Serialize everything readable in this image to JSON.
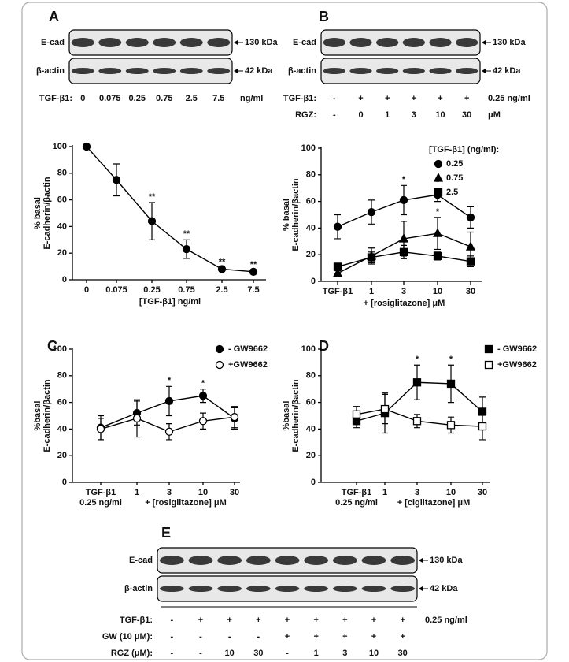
{
  "chart_data": [
    {
      "type": "line",
      "categories": [
        "0",
        "0.075",
        "0.25",
        "0.75",
        "2.5",
        "7.5"
      ],
      "xlabel": "[TGF-β1] ng/ml",
      "ylabel": [
        "% basal",
        "E-cadherin/βactin"
      ],
      "ylim": [
        0,
        100
      ],
      "yticks": [
        0,
        20,
        40,
        60,
        80,
        100
      ],
      "series": [
        {
          "marker": "circle",
          "filled": true,
          "color": "#000000",
          "values": [
            100,
            75,
            44,
            23,
            8,
            6
          ],
          "errors": [
            0,
            12,
            14,
            7,
            1,
            1
          ],
          "significance": [
            null,
            null,
            "**",
            "**",
            "**",
            "**"
          ]
        }
      ]
    },
    {
      "type": "line",
      "categories": [
        "TGF-β1",
        "1",
        "3",
        "10",
        "30"
      ],
      "xlabel": "+ [rosiglitazone] μM",
      "ylabel": [
        "% basal",
        "E-cadherin/βactin"
      ],
      "ylim": [
        0,
        100
      ],
      "yticks": [
        0,
        20,
        40,
        60,
        80,
        100
      ],
      "legend": "upper right",
      "legend_title": "[TGF-β1] (ng/ml):",
      "series": [
        {
          "name": "0.25",
          "marker": "circle",
          "filled": true,
          "color": "#000000",
          "values": [
            41,
            52,
            61,
            65,
            48
          ],
          "errors": [
            9,
            9,
            11,
            5,
            8
          ],
          "significance": [
            null,
            null,
            "*",
            "*",
            null
          ]
        },
        {
          "name": "0.75",
          "marker": "triangle",
          "filled": true,
          "color": "#000000",
          "values": [
            6,
            19,
            32,
            36,
            26
          ],
          "errors": [
            2,
            6,
            13,
            12,
            11
          ],
          "significance": [
            null,
            null,
            null,
            "*",
            null
          ]
        },
        {
          "name": "2.5",
          "marker": "square",
          "filled": true,
          "color": "#000000",
          "values": [
            11,
            18,
            22,
            19,
            15
          ],
          "errors": [
            2,
            4,
            5,
            3,
            4
          ]
        }
      ]
    },
    {
      "type": "line",
      "label": "C",
      "categories": [
        "TGF-β1",
        "1",
        "3",
        "10",
        "30"
      ],
      "category_note": "0.25 ng/ml",
      "xlabel": "+ [rosiglitazone] μM",
      "ylabel": [
        "%basal",
        "E-cadherin/βactin"
      ],
      "ylim": [
        0,
        100
      ],
      "yticks": [
        0,
        20,
        40,
        60,
        80,
        100
      ],
      "legend": "upper right",
      "series": [
        {
          "name": "- GW9662",
          "marker": "circle",
          "filled": true,
          "color": "#000000",
          "values": [
            41,
            52,
            61,
            65,
            48
          ],
          "errors": [
            9,
            9,
            11,
            5,
            8
          ],
          "significance": [
            null,
            null,
            "*",
            "*",
            null
          ]
        },
        {
          "name": "+GW9662",
          "marker": "circle",
          "filled": false,
          "color": "#000000",
          "values": [
            40,
            48,
            38,
            46,
            49
          ],
          "errors": [
            8,
            14,
            6,
            6,
            8
          ]
        }
      ]
    },
    {
      "type": "line",
      "label": "D",
      "categories": [
        "TGF-β1",
        "1",
        "3",
        "10",
        "30"
      ],
      "category_note": "0.25 ng/ml",
      "xlabel": "+ [ciglitazone] μM",
      "ylabel": [
        "%basal",
        "E-cadherin/βactin"
      ],
      "ylim": [
        0,
        100
      ],
      "yticks": [
        0,
        20,
        40,
        60,
        80,
        100
      ],
      "legend": "upper right",
      "series": [
        {
          "name": "- GW9662",
          "marker": "square",
          "filled": true,
          "color": "#000000",
          "values": [
            46,
            52,
            75,
            74,
            53
          ],
          "errors": [
            5,
            15,
            13,
            14,
            11
          ],
          "significance": [
            null,
            null,
            "*",
            "*",
            null
          ]
        },
        {
          "name": "+GW9662",
          "marker": "square",
          "filled": false,
          "color": "#000000",
          "values": [
            51,
            55,
            46,
            43,
            42
          ],
          "errors": [
            6,
            11,
            5,
            6,
            10
          ]
        }
      ]
    }
  ],
  "blots": [
    {
      "label": "A",
      "bands": [
        "E-cad",
        "β-actin"
      ],
      "sizes": [
        "130 kDa",
        "42 kDa"
      ],
      "rows": [
        {
          "name": "TGF-β1:",
          "cells": [
            "0",
            "0.075",
            "0.25",
            "0.75",
            "2.5",
            "7.5"
          ],
          "unit": "ng/ml"
        }
      ]
    },
    {
      "label": "B",
      "bands": [
        "E-cad",
        "β-actin"
      ],
      "sizes": [
        "130 kDa",
        "42 kDa"
      ],
      "rows": [
        {
          "name": "TGF-β1:",
          "cells": [
            "-",
            "+",
            "+",
            "+",
            "+",
            "+"
          ],
          "unit": "0.25 ng/ml"
        },
        {
          "name": "RGZ:",
          "cells": [
            "-",
            "0",
            "1",
            "3",
            "10",
            "30"
          ],
          "unit": "μM"
        }
      ]
    },
    {
      "label": "E",
      "bands": [
        "E-cad",
        "β-actin"
      ],
      "sizes": [
        "130 kDa",
        "42 kDa"
      ],
      "rows": [
        {
          "name": "TGF-β1:",
          "cells": [
            "-",
            "+",
            "+",
            "+",
            "+",
            "+",
            "+",
            "+",
            "+"
          ],
          "unit": "0.25 ng/ml"
        },
        {
          "name": "GW (10 μM):",
          "cells": [
            "-",
            "-",
            "-",
            "-",
            "+",
            "+",
            "+",
            "+",
            "+"
          ]
        },
        {
          "name": "RGZ (μM):",
          "cells": [
            "-",
            "-",
            "10",
            "30",
            "-",
            "1",
            "3",
            "10",
            "30"
          ]
        }
      ]
    }
  ]
}
